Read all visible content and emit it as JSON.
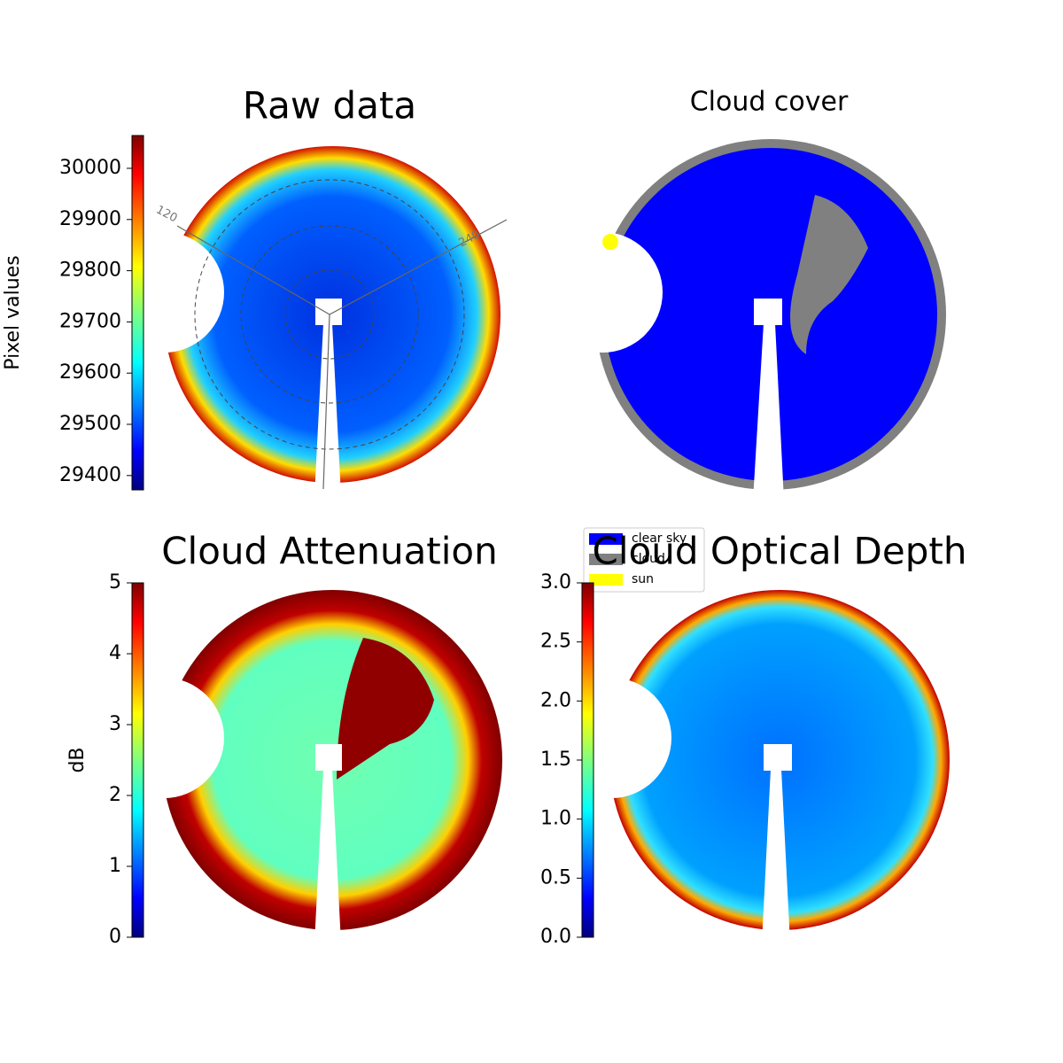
{
  "chart_data": [
    {
      "type": "image",
      "title": "Raw data",
      "colorbar_label": "Pixel values",
      "clim": [
        29372,
        30064
      ],
      "cticks": [
        29400,
        29500,
        29600,
        29700,
        29800,
        29900,
        30000
      ],
      "annotations": [
        "120",
        "240"
      ]
    },
    {
      "type": "image",
      "title": "Cloud cover",
      "series": [
        {
          "name": "clear sky",
          "color": "#0000ff"
        },
        {
          "name": "cloud",
          "color": "#808080"
        },
        {
          "name": "sun",
          "color": "#ffff00"
        }
      ]
    },
    {
      "type": "image",
      "title": "Cloud Attenuation",
      "colorbar_label": "dB",
      "clim": [
        0,
        5
      ],
      "cticks": [
        0,
        1,
        2,
        3,
        4,
        5
      ]
    },
    {
      "type": "image",
      "title": "Cloud Optical Depth",
      "clim": [
        0,
        3
      ],
      "cticks": [
        {
          "value": 0,
          "label": "0.0"
        },
        {
          "value": 0.5,
          "label": "0.5"
        },
        {
          "value": 1,
          "label": "1.0"
        },
        {
          "value": 1.5,
          "label": "1.5"
        },
        {
          "value": 2,
          "label": "2.0"
        },
        {
          "value": 2.5,
          "label": "2.5"
        },
        {
          "value": 3,
          "label": "3.0"
        }
      ]
    }
  ]
}
